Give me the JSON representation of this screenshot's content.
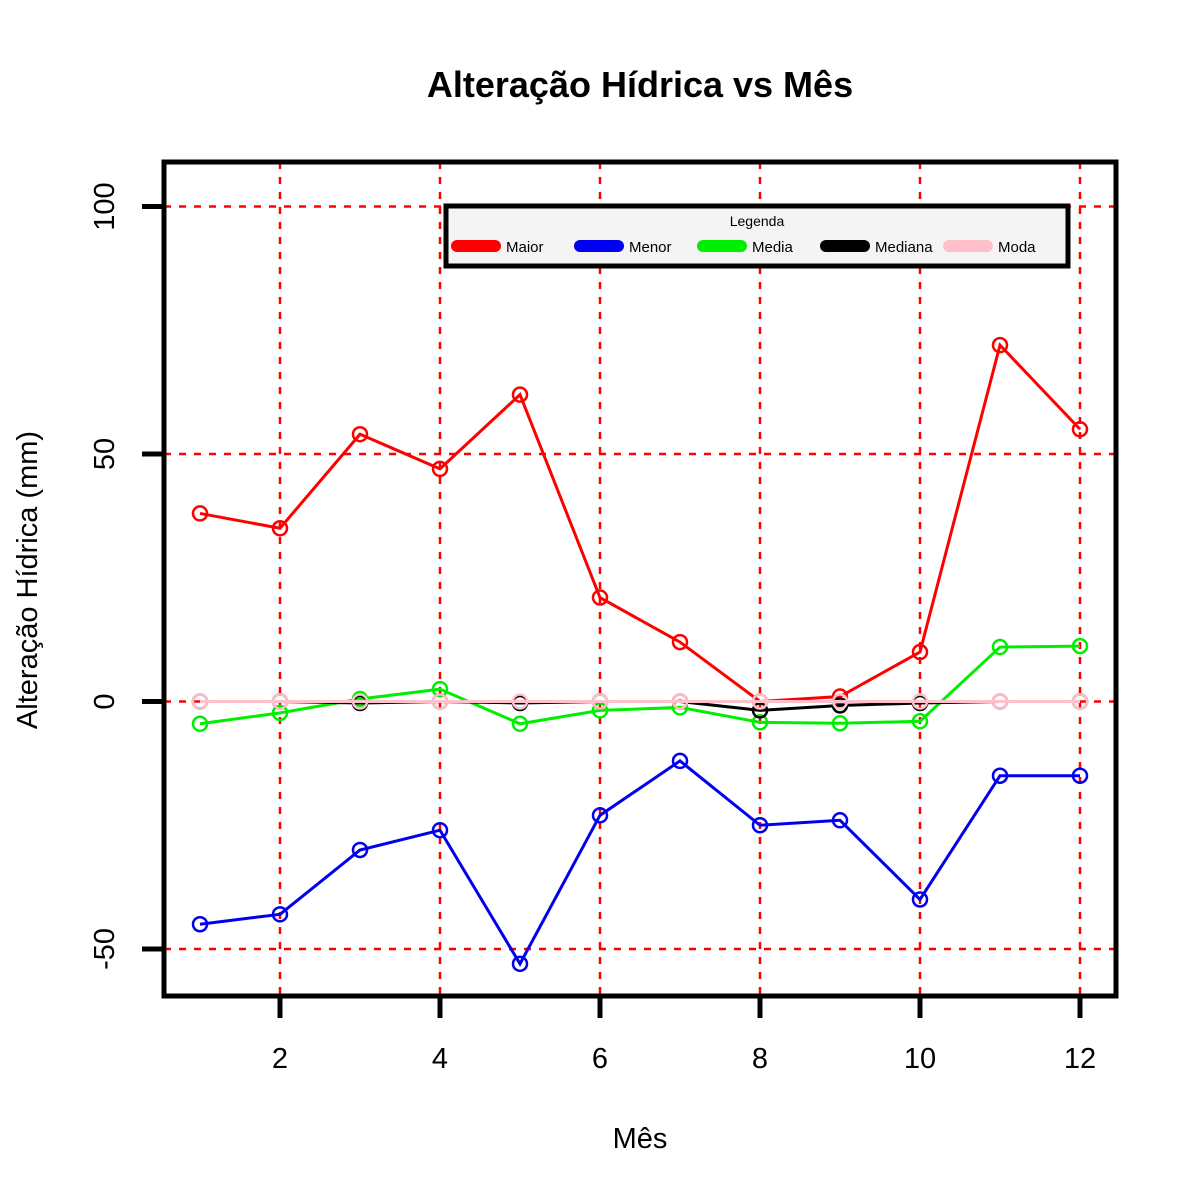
{
  "chart_data": {
    "type": "line",
    "title": "Alteração Hídrica vs Mês",
    "xlabel": "Mês",
    "ylabel": "Alteração Hídrica (mm)",
    "xlim": [
      0.55,
      12.45
    ],
    "ylim": [
      -59.5,
      109
    ],
    "x_ticks": [
      2,
      4,
      6,
      8,
      10,
      12
    ],
    "y_ticks": [
      -50,
      0,
      50,
      100
    ],
    "grid": true,
    "grid_color": "#ff0000",
    "legend": {
      "title": "Legenda",
      "placement": "top-right",
      "entries": [
        "Maior",
        "Menor",
        "Media",
        "Mediana",
        "Moda"
      ]
    },
    "x": [
      1,
      2,
      3,
      4,
      5,
      6,
      7,
      8,
      9,
      10,
      11,
      12
    ],
    "series": [
      {
        "name": "Maior",
        "color": "#ff0000",
        "values": [
          38,
          35,
          54,
          47,
          62,
          21,
          12,
          0,
          1,
          10,
          72,
          55
        ]
      },
      {
        "name": "Menor",
        "color": "#0000ee",
        "values": [
          -45,
          -43,
          -30,
          -26,
          -53,
          -23,
          -12,
          -25,
          -24,
          -40,
          -15,
          -15
        ]
      },
      {
        "name": "Media",
        "color": "#00ee00",
        "values": [
          -4.5,
          -2.3,
          0.5,
          2.5,
          -4.5,
          -1.8,
          -1.2,
          -4.2,
          -4.4,
          -4.0,
          11,
          11.2
        ]
      },
      {
        "name": "Mediana",
        "color": "#000000",
        "values": [
          0,
          0,
          -0.3,
          0,
          -0.3,
          0,
          0,
          -1.8,
          -0.8,
          -0.3,
          0,
          0
        ]
      },
      {
        "name": "Moda",
        "color": "#ffc0cb",
        "values": [
          0,
          0,
          0,
          0,
          0,
          0,
          0,
          0,
          0,
          0,
          0,
          0
        ]
      }
    ]
  }
}
